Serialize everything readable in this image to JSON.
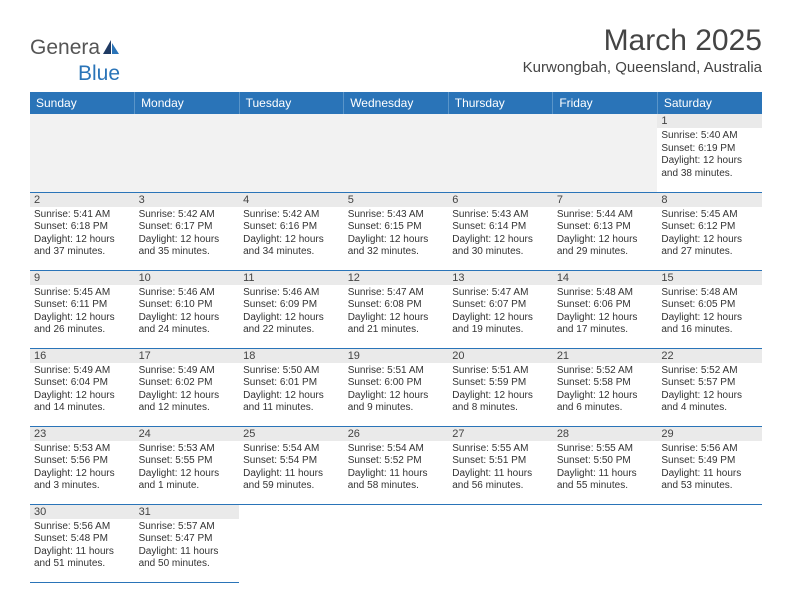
{
  "logo": {
    "text1": "Genera",
    "text2": "Blue"
  },
  "title": "March 2025",
  "location": "Kurwongbah, Queensland, Australia",
  "headers": [
    "Sunday",
    "Monday",
    "Tuesday",
    "Wednesday",
    "Thursday",
    "Friday",
    "Saturday"
  ],
  "colors": {
    "header_bg": "#2a74b8",
    "header_text": "#ffffff",
    "daynum_bg": "#eaeaea",
    "border": "#2a74b8"
  },
  "weeks": [
    [
      null,
      null,
      null,
      null,
      null,
      null,
      {
        "n": "1",
        "sunrise": "Sunrise: 5:40 AM",
        "sunset": "Sunset: 6:19 PM",
        "daylight": "Daylight: 12 hours and 38 minutes."
      }
    ],
    [
      {
        "n": "2",
        "sunrise": "Sunrise: 5:41 AM",
        "sunset": "Sunset: 6:18 PM",
        "daylight": "Daylight: 12 hours and 37 minutes."
      },
      {
        "n": "3",
        "sunrise": "Sunrise: 5:42 AM",
        "sunset": "Sunset: 6:17 PM",
        "daylight": "Daylight: 12 hours and 35 minutes."
      },
      {
        "n": "4",
        "sunrise": "Sunrise: 5:42 AM",
        "sunset": "Sunset: 6:16 PM",
        "daylight": "Daylight: 12 hours and 34 minutes."
      },
      {
        "n": "5",
        "sunrise": "Sunrise: 5:43 AM",
        "sunset": "Sunset: 6:15 PM",
        "daylight": "Daylight: 12 hours and 32 minutes."
      },
      {
        "n": "6",
        "sunrise": "Sunrise: 5:43 AM",
        "sunset": "Sunset: 6:14 PM",
        "daylight": "Daylight: 12 hours and 30 minutes."
      },
      {
        "n": "7",
        "sunrise": "Sunrise: 5:44 AM",
        "sunset": "Sunset: 6:13 PM",
        "daylight": "Daylight: 12 hours and 29 minutes."
      },
      {
        "n": "8",
        "sunrise": "Sunrise: 5:45 AM",
        "sunset": "Sunset: 6:12 PM",
        "daylight": "Daylight: 12 hours and 27 minutes."
      }
    ],
    [
      {
        "n": "9",
        "sunrise": "Sunrise: 5:45 AM",
        "sunset": "Sunset: 6:11 PM",
        "daylight": "Daylight: 12 hours and 26 minutes."
      },
      {
        "n": "10",
        "sunrise": "Sunrise: 5:46 AM",
        "sunset": "Sunset: 6:10 PM",
        "daylight": "Daylight: 12 hours and 24 minutes."
      },
      {
        "n": "11",
        "sunrise": "Sunrise: 5:46 AM",
        "sunset": "Sunset: 6:09 PM",
        "daylight": "Daylight: 12 hours and 22 minutes."
      },
      {
        "n": "12",
        "sunrise": "Sunrise: 5:47 AM",
        "sunset": "Sunset: 6:08 PM",
        "daylight": "Daylight: 12 hours and 21 minutes."
      },
      {
        "n": "13",
        "sunrise": "Sunrise: 5:47 AM",
        "sunset": "Sunset: 6:07 PM",
        "daylight": "Daylight: 12 hours and 19 minutes."
      },
      {
        "n": "14",
        "sunrise": "Sunrise: 5:48 AM",
        "sunset": "Sunset: 6:06 PM",
        "daylight": "Daylight: 12 hours and 17 minutes."
      },
      {
        "n": "15",
        "sunrise": "Sunrise: 5:48 AM",
        "sunset": "Sunset: 6:05 PM",
        "daylight": "Daylight: 12 hours and 16 minutes."
      }
    ],
    [
      {
        "n": "16",
        "sunrise": "Sunrise: 5:49 AM",
        "sunset": "Sunset: 6:04 PM",
        "daylight": "Daylight: 12 hours and 14 minutes."
      },
      {
        "n": "17",
        "sunrise": "Sunrise: 5:49 AM",
        "sunset": "Sunset: 6:02 PM",
        "daylight": "Daylight: 12 hours and 12 minutes."
      },
      {
        "n": "18",
        "sunrise": "Sunrise: 5:50 AM",
        "sunset": "Sunset: 6:01 PM",
        "daylight": "Daylight: 12 hours and 11 minutes."
      },
      {
        "n": "19",
        "sunrise": "Sunrise: 5:51 AM",
        "sunset": "Sunset: 6:00 PM",
        "daylight": "Daylight: 12 hours and 9 minutes."
      },
      {
        "n": "20",
        "sunrise": "Sunrise: 5:51 AM",
        "sunset": "Sunset: 5:59 PM",
        "daylight": "Daylight: 12 hours and 8 minutes."
      },
      {
        "n": "21",
        "sunrise": "Sunrise: 5:52 AM",
        "sunset": "Sunset: 5:58 PM",
        "daylight": "Daylight: 12 hours and 6 minutes."
      },
      {
        "n": "22",
        "sunrise": "Sunrise: 5:52 AM",
        "sunset": "Sunset: 5:57 PM",
        "daylight": "Daylight: 12 hours and 4 minutes."
      }
    ],
    [
      {
        "n": "23",
        "sunrise": "Sunrise: 5:53 AM",
        "sunset": "Sunset: 5:56 PM",
        "daylight": "Daylight: 12 hours and 3 minutes."
      },
      {
        "n": "24",
        "sunrise": "Sunrise: 5:53 AM",
        "sunset": "Sunset: 5:55 PM",
        "daylight": "Daylight: 12 hours and 1 minute."
      },
      {
        "n": "25",
        "sunrise": "Sunrise: 5:54 AM",
        "sunset": "Sunset: 5:54 PM",
        "daylight": "Daylight: 11 hours and 59 minutes."
      },
      {
        "n": "26",
        "sunrise": "Sunrise: 5:54 AM",
        "sunset": "Sunset: 5:52 PM",
        "daylight": "Daylight: 11 hours and 58 minutes."
      },
      {
        "n": "27",
        "sunrise": "Sunrise: 5:55 AM",
        "sunset": "Sunset: 5:51 PM",
        "daylight": "Daylight: 11 hours and 56 minutes."
      },
      {
        "n": "28",
        "sunrise": "Sunrise: 5:55 AM",
        "sunset": "Sunset: 5:50 PM",
        "daylight": "Daylight: 11 hours and 55 minutes."
      },
      {
        "n": "29",
        "sunrise": "Sunrise: 5:56 AM",
        "sunset": "Sunset: 5:49 PM",
        "daylight": "Daylight: 11 hours and 53 minutes."
      }
    ],
    [
      {
        "n": "30",
        "sunrise": "Sunrise: 5:56 AM",
        "sunset": "Sunset: 5:48 PM",
        "daylight": "Daylight: 11 hours and 51 minutes."
      },
      {
        "n": "31",
        "sunrise": "Sunrise: 5:57 AM",
        "sunset": "Sunset: 5:47 PM",
        "daylight": "Daylight: 11 hours and 50 minutes."
      },
      null,
      null,
      null,
      null,
      null
    ]
  ]
}
